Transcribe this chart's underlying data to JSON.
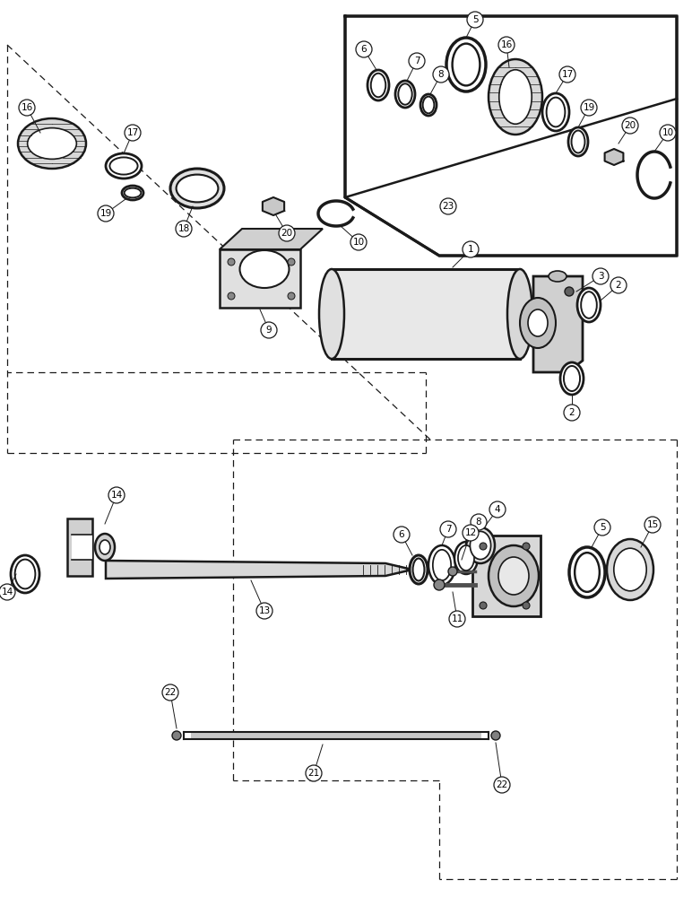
{
  "bg_color": "#ffffff",
  "lc": "#1a1a1a",
  "fig_w": 7.72,
  "fig_h": 10.0,
  "dpi": 100
}
